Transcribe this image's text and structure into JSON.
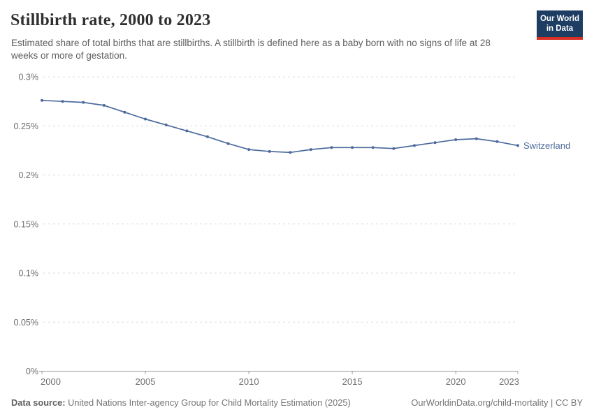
{
  "header": {
    "title": "Stillbirth rate, 2000 to 2023",
    "subtitle": "Estimated share of total births that are stillbirths. A stillbirth is defined here as a baby born with no signs of life at 28 weeks or more of gestation.",
    "logo": {
      "line1": "Our World",
      "line2": "in Data",
      "bg_color": "#1d3d63",
      "bar_color": "#d93025"
    }
  },
  "chart_data": {
    "type": "line",
    "title": "Stillbirth rate, 2000 to 2023",
    "xlabel": "",
    "ylabel": "",
    "unit": "%",
    "xlim": [
      2000,
      2023
    ],
    "ylim": [
      0,
      0.3
    ],
    "x_ticks": [
      2000,
      2005,
      2010,
      2015,
      2020,
      2023
    ],
    "y_ticks": [
      "0%",
      "0.05%",
      "0.1%",
      "0.15%",
      "0.2%",
      "0.25%",
      "0.3%"
    ],
    "y_tick_values": [
      0,
      0.05,
      0.1,
      0.15,
      0.2,
      0.25,
      0.3
    ],
    "grid": "dashed-horizontal",
    "legend_position": "end-of-line-label",
    "series": [
      {
        "name": "Switzerland",
        "color": "#4C6A9C",
        "x": [
          2000,
          2001,
          2002,
          2003,
          2004,
          2005,
          2006,
          2007,
          2008,
          2009,
          2010,
          2011,
          2012,
          2013,
          2014,
          2015,
          2016,
          2017,
          2018,
          2019,
          2020,
          2021,
          2022,
          2023
        ],
        "values": [
          0.276,
          0.275,
          0.274,
          0.271,
          0.264,
          0.257,
          0.251,
          0.245,
          0.239,
          0.232,
          0.226,
          0.224,
          0.223,
          0.226,
          0.228,
          0.228,
          0.228,
          0.227,
          0.23,
          0.233,
          0.236,
          0.237,
          0.234,
          0.23
        ]
      }
    ]
  },
  "footer": {
    "source_label": "Data source:",
    "source_text": " United Nations Inter-agency Group for Child Mortality Estimation (2025)",
    "link_text": "OurWorldinData.org/child-mortality | CC BY"
  },
  "colors": {
    "line": "#4C6A9C",
    "gridline": "#dcdcdc",
    "axis": "#9a9a9a",
    "tick_label": "#6e6e6e",
    "title": "#2f2f2f",
    "subtitle": "#5e5e5e",
    "footer": "#757575"
  }
}
